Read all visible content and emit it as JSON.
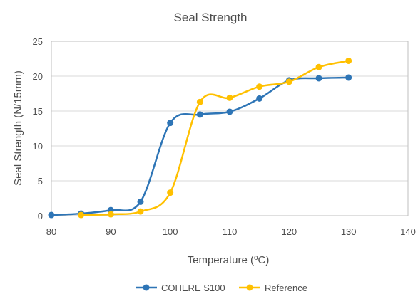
{
  "chart_data": {
    "type": "scatter",
    "title": "Seal Strength",
    "xlabel_prefix": "Temperature (",
    "xlabel_sup": "o",
    "xlabel_suffix": "C)",
    "ylabel": "Seal Strength (N/15mm)",
    "xlim": [
      80,
      140
    ],
    "ylim": [
      0,
      25
    ],
    "xticks": [
      80,
      90,
      100,
      110,
      120,
      130,
      140
    ],
    "yticks": [
      0,
      5,
      10,
      15,
      20,
      25
    ],
    "grid": true,
    "legend_position": "bottom",
    "smooth_lines": true,
    "series": [
      {
        "name": "COHERE S100",
        "color": "#2e75b6",
        "points": [
          [
            80,
            0.1
          ],
          [
            85,
            0.3
          ],
          [
            90,
            0.8
          ],
          [
            95,
            2.0
          ],
          [
            100,
            13.3
          ],
          [
            105,
            14.5
          ],
          [
            110,
            14.9
          ],
          [
            115,
            16.8
          ],
          [
            120,
            19.4
          ],
          [
            125,
            19.7
          ],
          [
            130,
            19.8
          ]
        ]
      },
      {
        "name": "Reference",
        "color": "#ffc000",
        "points": [
          [
            85,
            0.1
          ],
          [
            90,
            0.2
          ],
          [
            95,
            0.6
          ],
          [
            100,
            3.3
          ],
          [
            105,
            16.3
          ],
          [
            110,
            16.9
          ],
          [
            115,
            18.5
          ],
          [
            120,
            19.2
          ],
          [
            125,
            21.3
          ],
          [
            130,
            22.2
          ]
        ]
      }
    ]
  }
}
